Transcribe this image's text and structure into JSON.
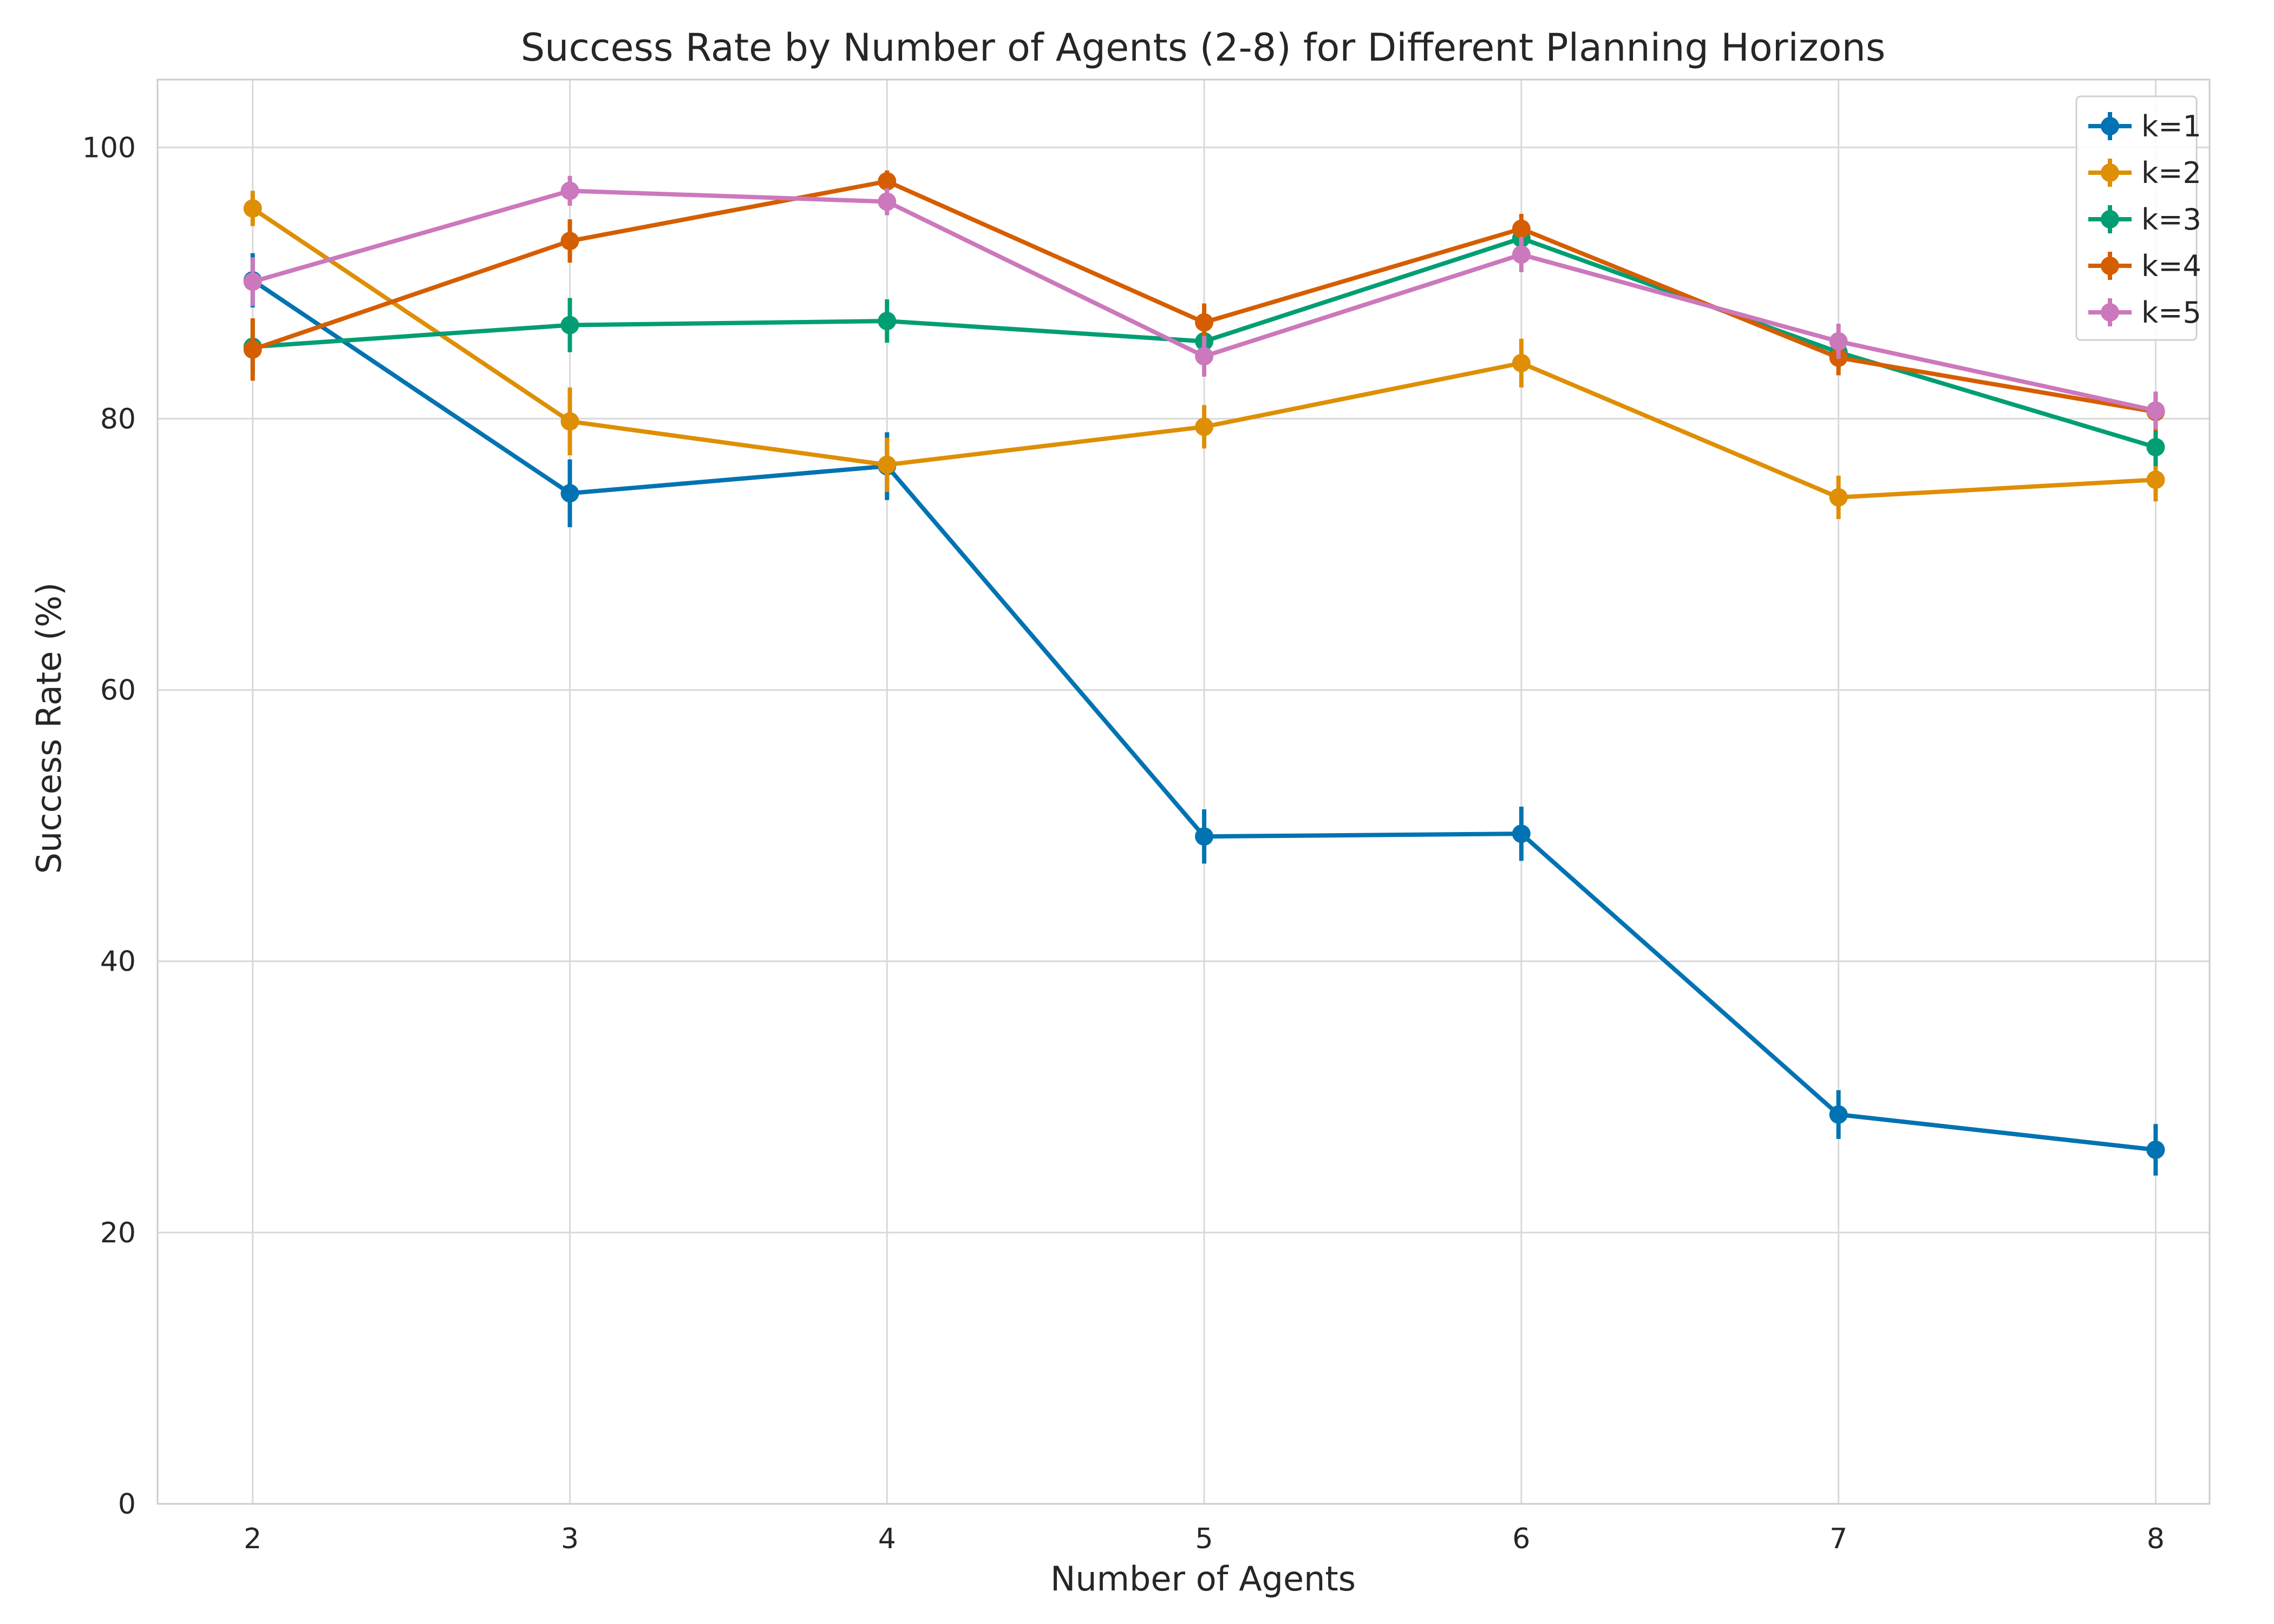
{
  "chart_data": {
    "type": "line",
    "title": "Success Rate by Number of Agents (2-8) for Different Planning Horizons",
    "xlabel": "Number of Agents",
    "ylabel": "Success Rate (%)",
    "x": [
      2,
      3,
      4,
      5,
      6,
      7,
      8
    ],
    "xlim": [
      1.7,
      8.17
    ],
    "ylim": [
      0,
      105
    ],
    "xticks": [
      2,
      3,
      4,
      5,
      6,
      7,
      8
    ],
    "yticks": [
      0,
      20,
      40,
      60,
      80,
      100
    ],
    "grid": true,
    "legend_position": "top-right",
    "series": [
      {
        "name": "k=1",
        "color": "#0173b2",
        "values": [
          90.2,
          74.5,
          76.5,
          49.2,
          49.4,
          28.7,
          26.1
        ],
        "errors": [
          2.0,
          2.5,
          2.5,
          2.0,
          2.0,
          1.8,
          1.9
        ]
      },
      {
        "name": "k=2",
        "color": "#de8f05",
        "values": [
          95.5,
          79.8,
          76.6,
          79.4,
          84.1,
          74.2,
          75.5
        ],
        "errors": [
          1.3,
          2.5,
          2.0,
          1.6,
          1.8,
          1.6,
          1.6
        ]
      },
      {
        "name": "k=3",
        "color": "#029e73",
        "values": [
          85.3,
          86.9,
          87.2,
          85.7,
          93.3,
          84.9,
          77.9
        ],
        "errors": [
          2.0,
          2.0,
          1.6,
          1.3,
          1.2,
          1.4,
          1.4
        ]
      },
      {
        "name": "k=4",
        "color": "#d55e00",
        "values": [
          85.1,
          93.1,
          97.5,
          87.1,
          94.0,
          84.5,
          80.5
        ],
        "errors": [
          2.3,
          1.6,
          0.8,
          1.4,
          1.1,
          1.3,
          1.4
        ]
      },
      {
        "name": "k=5",
        "color": "#cc78bc",
        "values": [
          90.1,
          96.8,
          96.0,
          84.6,
          92.1,
          85.7,
          80.6
        ],
        "errors": [
          1.8,
          1.1,
          1.0,
          1.5,
          1.3,
          1.3,
          1.4
        ]
      }
    ]
  }
}
